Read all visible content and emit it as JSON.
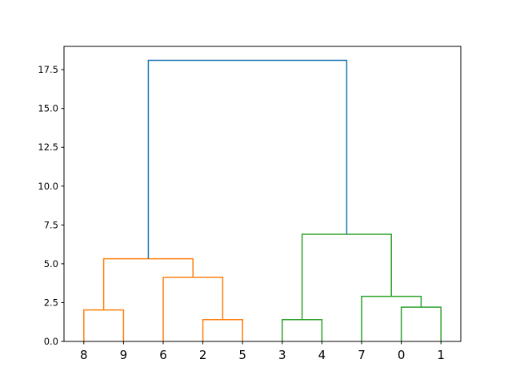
{
  "chart_data": {
    "type": "dendrogram",
    "title": "",
    "xlabel": "",
    "ylabel": "",
    "ylim": [
      0,
      19.0
    ],
    "yticks": [
      "0.0",
      "2.5",
      "5.0",
      "7.5",
      "10.0",
      "12.5",
      "15.0",
      "17.5"
    ],
    "leaf_order": [
      "8",
      "9",
      "6",
      "2",
      "5",
      "3",
      "4",
      "7",
      "0",
      "1"
    ],
    "links": [
      {
        "id": "A",
        "left": "8",
        "right": "9",
        "height": 2.03,
        "color": "#ff7f0e"
      },
      {
        "id": "B",
        "left": "2",
        "right": "5",
        "height": 1.4,
        "color": "#ff7f0e"
      },
      {
        "id": "C",
        "left": "6",
        "right": "B",
        "height": 4.13,
        "color": "#ff7f0e"
      },
      {
        "id": "D",
        "left": "A",
        "right": "C",
        "height": 5.32,
        "color": "#ff7f0e"
      },
      {
        "id": "E",
        "left": "3",
        "right": "4",
        "height": 1.4,
        "color": "#2ca02c"
      },
      {
        "id": "F",
        "left": "0",
        "right": "1",
        "height": 2.21,
        "color": "#2ca02c"
      },
      {
        "id": "G",
        "left": "7",
        "right": "F",
        "height": 2.9,
        "color": "#2ca02c"
      },
      {
        "id": "H",
        "left": "E",
        "right": "G",
        "height": 6.9,
        "color": "#2ca02c"
      },
      {
        "id": "I",
        "left": "D",
        "right": "H",
        "height": 18.1,
        "color": "#1f77b4"
      }
    ]
  }
}
